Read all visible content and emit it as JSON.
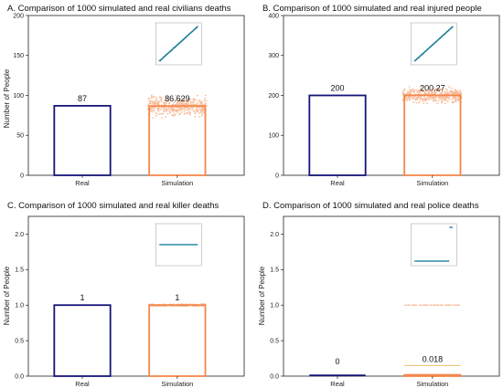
{
  "figure": {
    "colors": {
      "real": "#141478",
      "simulation": "#f4874b",
      "scatter": "#f4874b",
      "inset_line": "#2a8aa8",
      "inset_points": "#1d6e78",
      "axis": "#222222"
    }
  },
  "chart_data": [
    {
      "type": "bar",
      "title": "A. Comparison of 1000 simulated and real civilians deaths",
      "ylabel": "Number of People",
      "categories": [
        "Real",
        "Simulation"
      ],
      "values": [
        87,
        86.629
      ],
      "value_labels": [
        "87",
        "86.629"
      ],
      "ylim": [
        0,
        200
      ],
      "yticks": [
        "0",
        "50",
        "100",
        "150",
        "200"
      ],
      "simulated_spread": [
        72,
        100
      ],
      "inset": "qq-line"
    },
    {
      "type": "bar",
      "title": "B. Comparison of 1000 simulated and real injured people",
      "ylabel": "",
      "categories": [
        "Real",
        "Simulation"
      ],
      "values": [
        200,
        200.27
      ],
      "value_labels": [
        "200",
        "200.27"
      ],
      "ylim": [
        0,
        400
      ],
      "yticks": [
        "0",
        "100",
        "200",
        "300",
        "400"
      ],
      "simulated_spread": [
        180,
        222
      ],
      "inset": "qq-line"
    },
    {
      "type": "bar",
      "title": "C. Comparison of 1000 simulated and real killer deaths",
      "ylabel": "Number of People",
      "categories": [
        "Real",
        "Simulation"
      ],
      "values": [
        1,
        1
      ],
      "value_labels": [
        "1",
        "1"
      ],
      "ylim": [
        0,
        2.25
      ],
      "yticks": [
        "0.0",
        "0.5",
        "1.0",
        "1.5",
        "2.0"
      ],
      "simulated_spread": [
        1,
        1
      ],
      "inset": "flat"
    },
    {
      "type": "bar",
      "title": "D. Comparison of 1000 simulated and real police deaths",
      "ylabel": "Number of People",
      "categories": [
        "Real",
        "Simulation"
      ],
      "values": [
        0,
        0.018
      ],
      "value_labels": [
        "0",
        "0.018"
      ],
      "ylim": [
        0,
        2.25
      ],
      "yticks": [
        "0.0",
        "0.5",
        "1.0",
        "1.5",
        "2.0"
      ],
      "simulated_spread": [
        0,
        1
      ],
      "inset": "step"
    }
  ]
}
